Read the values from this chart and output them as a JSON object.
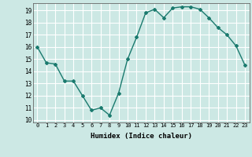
{
  "x": [
    0,
    1,
    2,
    3,
    4,
    5,
    6,
    7,
    8,
    9,
    10,
    11,
    12,
    13,
    14,
    15,
    16,
    17,
    18,
    19,
    20,
    21,
    22,
    23
  ],
  "y": [
    16.0,
    14.7,
    14.6,
    13.2,
    13.2,
    12.0,
    10.8,
    11.0,
    10.4,
    12.2,
    15.0,
    16.8,
    18.8,
    19.1,
    18.4,
    19.2,
    19.3,
    19.3,
    19.1,
    18.4,
    17.6,
    17.0,
    16.1,
    14.5
  ],
  "ylabel_values": [
    10,
    11,
    12,
    13,
    14,
    15,
    16,
    17,
    18,
    19
  ],
  "xlabel": "Humidex (Indice chaleur)",
  "line_color": "#1a7a6e",
  "marker": "D",
  "marker_size": 2,
  "bg_color": "#cce8e4",
  "grid_color": "#ffffff",
  "xlim": [
    -0.5,
    23.5
  ],
  "ylim": [
    9.8,
    19.6
  ],
  "figsize": [
    3.2,
    2.0
  ],
  "dpi": 100
}
